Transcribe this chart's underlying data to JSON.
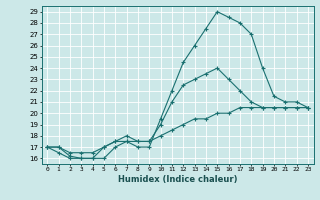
{
  "xlabel": "Humidex (Indice chaleur)",
  "bg_color": "#cce8e8",
  "line_color": "#1a7070",
  "grid_color": "#ffffff",
  "xlim": [
    -0.5,
    23.5
  ],
  "ylim": [
    15.5,
    29.5
  ],
  "xticks": [
    0,
    1,
    2,
    3,
    4,
    5,
    6,
    7,
    8,
    9,
    10,
    11,
    12,
    13,
    14,
    15,
    16,
    17,
    18,
    19,
    20,
    21,
    22,
    23
  ],
  "yticks": [
    16,
    17,
    18,
    19,
    20,
    21,
    22,
    23,
    24,
    25,
    26,
    27,
    28,
    29
  ],
  "curve1_x": [
    0,
    1,
    2,
    3,
    4,
    5,
    6,
    7,
    8,
    9,
    10,
    11,
    12,
    13,
    14,
    15,
    16,
    17,
    18,
    19,
    20,
    21,
    22,
    23
  ],
  "curve1_y": [
    17.0,
    17.0,
    16.2,
    16.0,
    16.0,
    16.0,
    17.0,
    17.5,
    17.0,
    17.0,
    19.5,
    22.0,
    24.5,
    26.0,
    27.5,
    29.0,
    28.5,
    28.0,
    27.0,
    24.0,
    21.5,
    21.0,
    21.0,
    20.5
  ],
  "curve2_x": [
    0,
    1,
    2,
    3,
    4,
    5,
    6,
    7,
    8,
    9,
    10,
    11,
    12,
    13,
    14,
    15,
    16,
    17,
    18,
    19,
    20,
    21,
    22,
    23
  ],
  "curve2_y": [
    17.0,
    16.5,
    16.0,
    16.0,
    16.0,
    17.0,
    17.5,
    18.0,
    17.5,
    17.5,
    19.0,
    21.0,
    22.5,
    23.0,
    23.5,
    24.0,
    23.0,
    22.0,
    21.0,
    20.5,
    20.5,
    20.5,
    20.5,
    20.5
  ],
  "curve3_x": [
    0,
    1,
    2,
    3,
    4,
    5,
    6,
    7,
    8,
    9,
    10,
    11,
    12,
    13,
    14,
    15,
    16,
    17,
    18,
    19,
    20,
    21,
    22,
    23
  ],
  "curve3_y": [
    17.0,
    17.0,
    16.5,
    16.5,
    16.5,
    17.0,
    17.5,
    17.5,
    17.5,
    17.5,
    18.0,
    18.5,
    19.0,
    19.5,
    19.5,
    20.0,
    20.0,
    20.5,
    20.5,
    20.5,
    20.5,
    20.5,
    20.5,
    20.5
  ]
}
